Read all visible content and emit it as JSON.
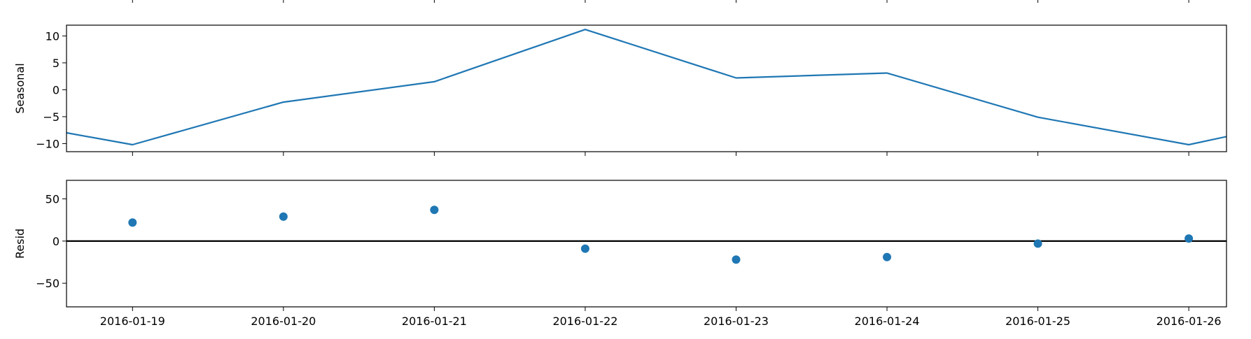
{
  "chart_data": [
    {
      "type": "line",
      "ylabel": "Seasonal",
      "x": [
        "2016-01-18 13:30",
        "2016-01-19",
        "2016-01-20",
        "2016-01-21",
        "2016-01-22",
        "2016-01-23",
        "2016-01-24",
        "2016-01-25",
        "2016-01-26",
        "2016-01-26 06:00"
      ],
      "values": [
        -8.0,
        -10.2,
        -2.3,
        1.5,
        11.2,
        2.2,
        3.1,
        -5.1,
        -10.2,
        -8.7
      ],
      "ylim": [
        -11.5,
        12
      ],
      "yticks": [
        -10,
        -5,
        0,
        5,
        10
      ],
      "ytick_labels": [
        "−10",
        "−5",
        "0",
        "5",
        "10"
      ],
      "xlim": [
        "2016-01-18 13:30",
        "2016-01-26 06:00"
      ],
      "color": "#1f77b4",
      "grid": false
    },
    {
      "type": "scatter",
      "ylabel": "Resid",
      "x": [
        "2016-01-19",
        "2016-01-20",
        "2016-01-21",
        "2016-01-22",
        "2016-01-23",
        "2016-01-24",
        "2016-01-25",
        "2016-01-26"
      ],
      "values": [
        22,
        29,
        37,
        -9,
        -22,
        -19,
        -3,
        3
      ],
      "ylim": [
        -78,
        72
      ],
      "yticks": [
        -50,
        0,
        50
      ],
      "ytick_labels": [
        "−50",
        "0",
        "50"
      ],
      "zero_line": true,
      "xlim": [
        "2016-01-18 13:30",
        "2016-01-26 06:00"
      ],
      "xticks": [
        "2016-01-19",
        "2016-01-20",
        "2016-01-21",
        "2016-01-22",
        "2016-01-23",
        "2016-01-24",
        "2016-01-25",
        "2016-01-26"
      ],
      "xtick_labels": [
        "2016-01-19",
        "2016-01-20",
        "2016-01-21",
        "2016-01-22",
        "2016-01-23",
        "2016-01-24",
        "2016-01-25",
        "2016-01-26"
      ],
      "color": "#1f77b4",
      "grid": false
    }
  ]
}
